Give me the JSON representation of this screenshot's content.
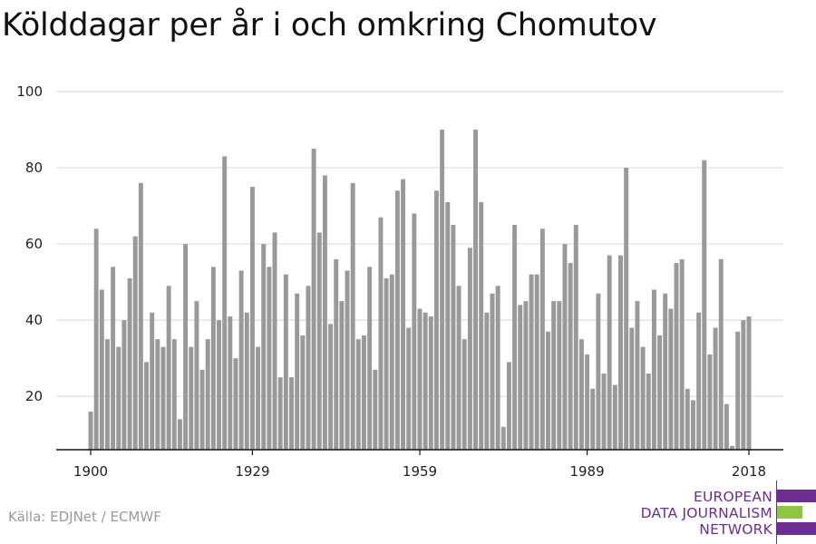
{
  "title": "Kölddagar per år i och omkring Chomutov",
  "source": "Källa: EDJNet / ECMWF",
  "logo": {
    "line1": "EUROPEAN",
    "line2": "DATA JOURNALISM",
    "line3": "NETWORK",
    "color_purple": "#6c2d91",
    "color_green": "#8dc63f"
  },
  "colors": {
    "bar": "#999999",
    "grid": "#dddddd",
    "axis": "#111111"
  },
  "chart_data": {
    "type": "bar",
    "title": "Kölddagar per år i och omkring Chomutov",
    "xlabel": "",
    "ylabel": "",
    "ylim": [
      6,
      100
    ],
    "yticks": [
      20,
      40,
      60,
      80,
      100
    ],
    "xticks": [
      1900,
      1929,
      1959,
      1989,
      2018
    ],
    "grid": true,
    "x": [
      1900,
      1901,
      1902,
      1903,
      1904,
      1905,
      1906,
      1907,
      1908,
      1909,
      1910,
      1911,
      1912,
      1913,
      1914,
      1915,
      1916,
      1917,
      1918,
      1919,
      1920,
      1921,
      1922,
      1923,
      1924,
      1925,
      1926,
      1927,
      1928,
      1929,
      1930,
      1931,
      1932,
      1933,
      1934,
      1935,
      1936,
      1937,
      1938,
      1939,
      1940,
      1941,
      1942,
      1943,
      1944,
      1945,
      1946,
      1947,
      1948,
      1949,
      1950,
      1951,
      1952,
      1953,
      1954,
      1955,
      1956,
      1957,
      1958,
      1959,
      1960,
      1961,
      1962,
      1963,
      1964,
      1965,
      1966,
      1967,
      1968,
      1969,
      1970,
      1971,
      1972,
      1973,
      1974,
      1975,
      1976,
      1977,
      1978,
      1979,
      1980,
      1981,
      1982,
      1983,
      1984,
      1985,
      1986,
      1987,
      1988,
      1989,
      1990,
      1991,
      1992,
      1993,
      1994,
      1995,
      1996,
      1997,
      1998,
      1999,
      2000,
      2001,
      2002,
      2003,
      2004,
      2005,
      2006,
      2007,
      2008,
      2009,
      2010,
      2011,
      2012,
      2013,
      2014,
      2015,
      2016,
      2017,
      2018
    ],
    "values": [
      16,
      64,
      48,
      35,
      54,
      33,
      40,
      51,
      62,
      76,
      29,
      42,
      35,
      33,
      49,
      35,
      14,
      60,
      33,
      45,
      27,
      35,
      54,
      40,
      83,
      41,
      30,
      53,
      42,
      75,
      33,
      60,
      54,
      63,
      25,
      52,
      25,
      47,
      36,
      49,
      85,
      63,
      78,
      39,
      56,
      45,
      53,
      76,
      35,
      36,
      54,
      27,
      67,
      51,
      52,
      74,
      77,
      38,
      68,
      43,
      42,
      41,
      74,
      90,
      71,
      65,
      49,
      35,
      59,
      90,
      71,
      42,
      47,
      49,
      12,
      29,
      65,
      44,
      45,
      52,
      52,
      64,
      37,
      45,
      45,
      60,
      55,
      65,
      35,
      31,
      22,
      47,
      26,
      57,
      23,
      57,
      80,
      38,
      45,
      33,
      26,
      48,
      36,
      47,
      43,
      55,
      56,
      22,
      19,
      42,
      82,
      31,
      38,
      56,
      18,
      7,
      37,
      40,
      41
    ]
  }
}
